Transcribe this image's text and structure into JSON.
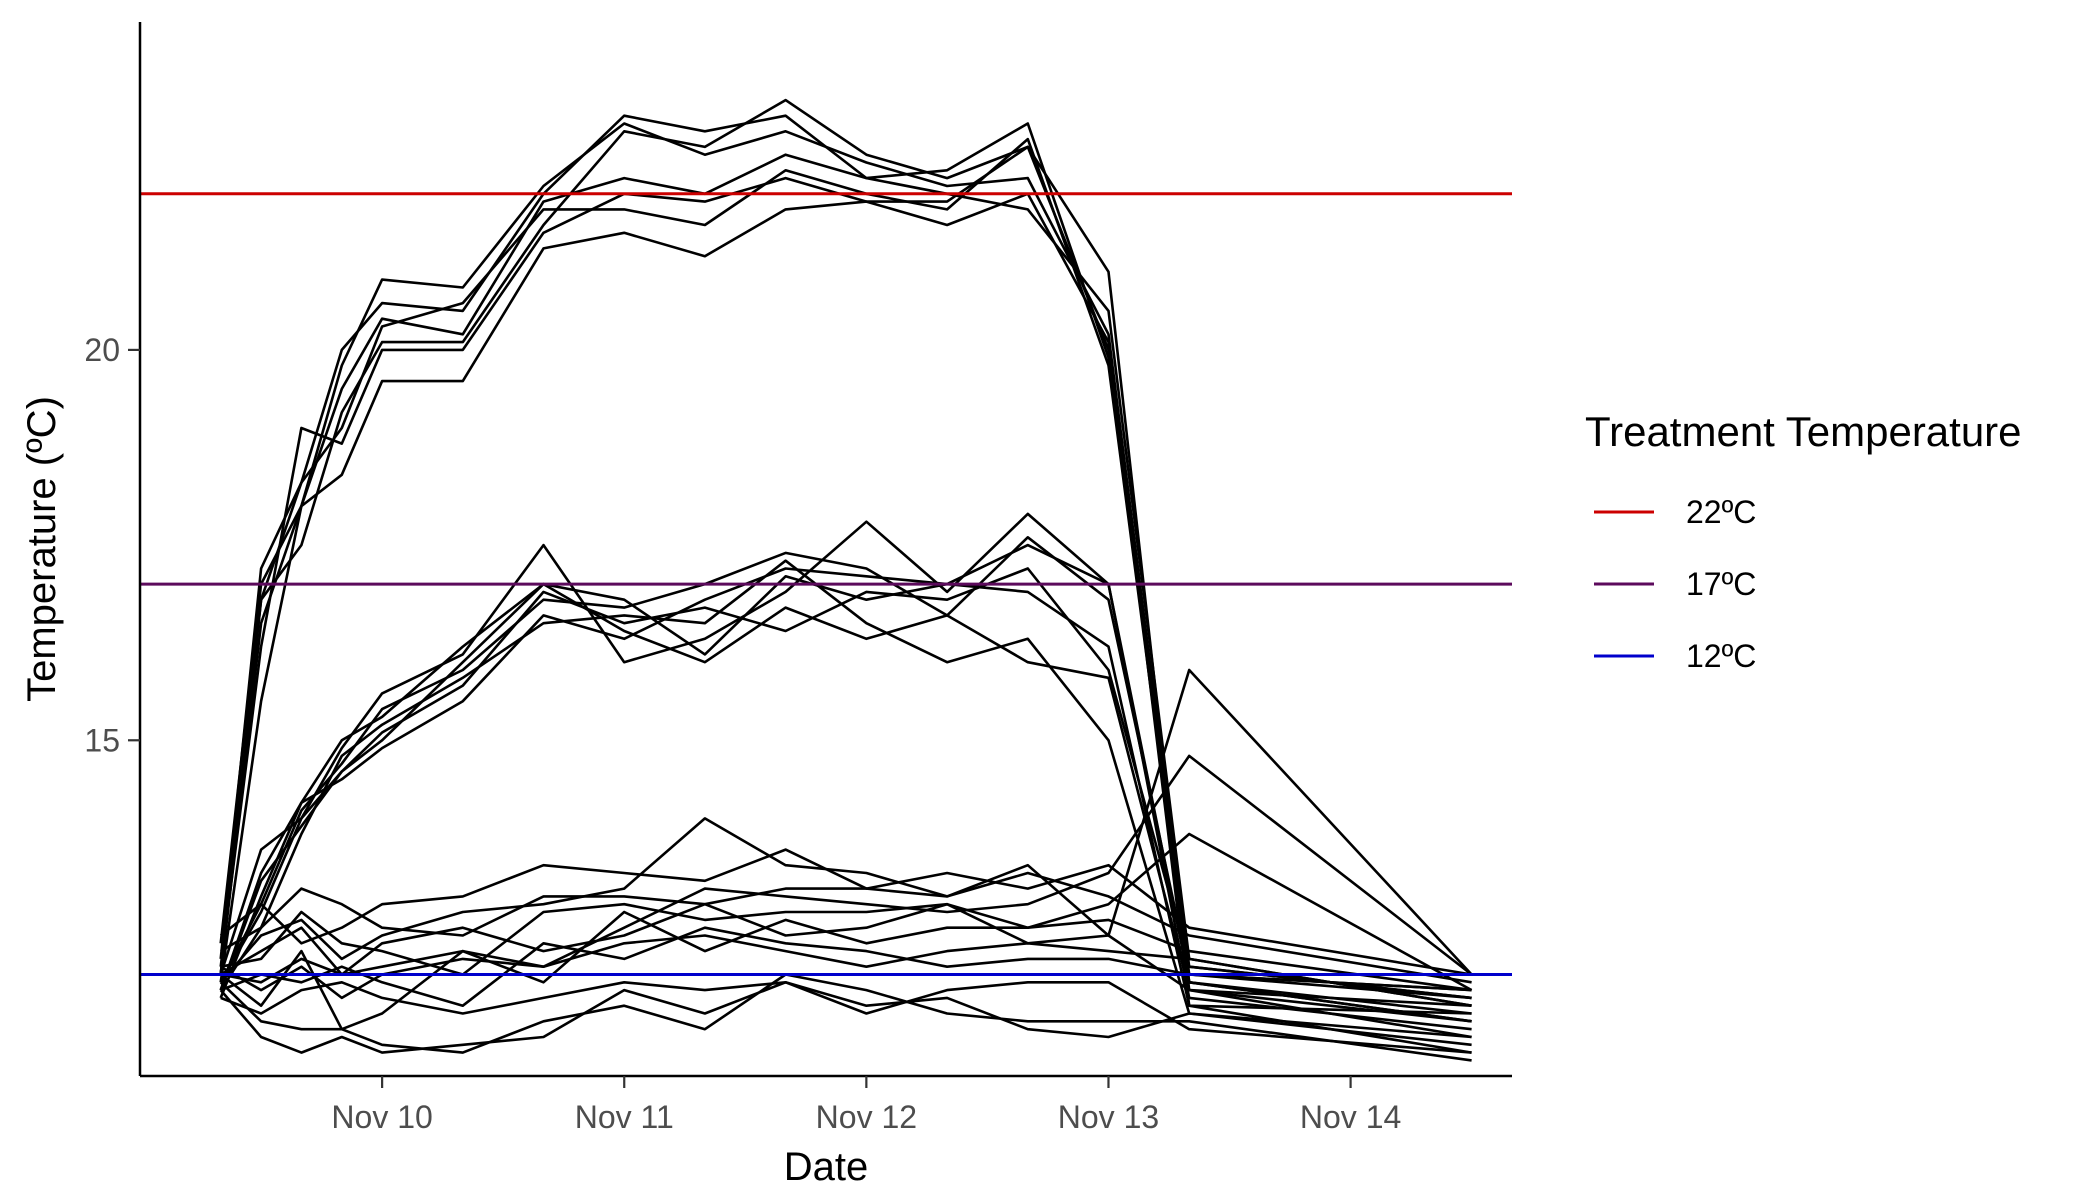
{
  "chart_data": {
    "type": "line",
    "title": "",
    "xlabel": "Date",
    "ylabel": "Temperature (ºC)",
    "x_axis": {
      "type": "date",
      "range": [
        "2023-11-09 00:00",
        "2023-11-14 16:00"
      ],
      "ticks": [
        {
          "value": "2023-11-10 00:00",
          "label": "Nov 10"
        },
        {
          "value": "2023-11-11 00:00",
          "label": "Nov 11"
        },
        {
          "value": "2023-11-12 00:00",
          "label": "Nov 12"
        },
        {
          "value": "2023-11-13 00:00",
          "label": "Nov 13"
        },
        {
          "value": "2023-11-14 00:00",
          "label": "Nov 14"
        }
      ]
    },
    "y_axis": {
      "range": [
        10.7,
        24.2
      ],
      "ticks": [
        {
          "value": 15,
          "label": "15"
        },
        {
          "value": 20,
          "label": "20"
        }
      ]
    },
    "grid": false,
    "legend": {
      "title": "Treatment Temperature",
      "placement": "right",
      "entries": [
        {
          "label": "22ºC",
          "color": "#cc0000",
          "value": 22
        },
        {
          "label": "17ºC",
          "color": "#5c0a5c",
          "value": 17
        },
        {
          "label": "12ºC",
          "color": "#0000cc",
          "value": 12
        }
      ]
    },
    "x": [
      "2023-11-09 08:00",
      "2023-11-09 12:00",
      "2023-11-09 16:00",
      "2023-11-09 20:00",
      "2023-11-10 00:00",
      "2023-11-10 08:00",
      "2023-11-10 16:00",
      "2023-11-11 00:00",
      "2023-11-11 08:00",
      "2023-11-11 16:00",
      "2023-11-12 00:00",
      "2023-11-12 08:00",
      "2023-11-12 16:00",
      "2023-11-13 00:00",
      "2023-11-13 08:00",
      "2023-11-14 12:00"
    ],
    "series": [
      {
        "values": [
          12.2,
          17.2,
          18.3,
          20.0,
          20.6,
          20.5,
          22.0,
          23.0,
          22.8,
          23.0,
          22.2,
          22.0,
          21.8,
          20.5,
          12.2,
          11.6
        ]
      },
      {
        "values": [
          12.0,
          16.5,
          18.0,
          19.8,
          20.9,
          20.8,
          22.1,
          22.9,
          22.5,
          22.8,
          22.4,
          22.1,
          22.2,
          20.2,
          12.0,
          11.8
        ]
      },
      {
        "values": [
          12.4,
          17.0,
          18.0,
          19.5,
          20.4,
          20.2,
          21.9,
          22.2,
          22.0,
          22.5,
          22.2,
          22.3,
          22.9,
          19.9,
          12.1,
          11.7
        ]
      },
      {
        "values": [
          12.0,
          16.8,
          17.5,
          19.2,
          20.1,
          20.1,
          21.6,
          22.8,
          22.6,
          23.2,
          22.5,
          22.2,
          22.6,
          20.0,
          11.9,
          11.5
        ]
      },
      {
        "values": [
          12.1,
          16.2,
          19.0,
          18.8,
          20.0,
          20.0,
          21.5,
          22.0,
          21.9,
          22.2,
          21.9,
          21.9,
          22.6,
          21.0,
          11.8,
          11.2
        ]
      },
      {
        "values": [
          11.9,
          15.5,
          18.0,
          18.4,
          19.6,
          19.6,
          21.3,
          21.5,
          21.2,
          21.8,
          21.9,
          21.6,
          22.0,
          20.1,
          11.6,
          11.0
        ]
      },
      {
        "values": [
          12.0,
          16.8,
          18.3,
          19.0,
          20.3,
          20.6,
          21.8,
          21.8,
          21.6,
          22.3,
          22.0,
          21.8,
          22.7,
          19.8,
          11.9,
          11.4
        ]
      },
      {
        "values": [
          11.8,
          12.6,
          13.8,
          14.8,
          15.2,
          15.8,
          16.5,
          16.6,
          16.5,
          17.3,
          16.5,
          16.0,
          16.3,
          15.0,
          11.5,
          11.2
        ]
      },
      {
        "values": [
          11.9,
          12.8,
          14.0,
          14.6,
          15.0,
          16.0,
          17.0,
          16.8,
          16.1,
          17.1,
          16.8,
          17.0,
          17.5,
          17.0,
          11.7,
          11.3
        ]
      },
      {
        "values": [
          11.7,
          13.0,
          14.2,
          14.5,
          14.9,
          15.5,
          16.6,
          16.3,
          16.8,
          17.2,
          17.1,
          17.0,
          16.9,
          16.2,
          11.6,
          11.5
        ]
      },
      {
        "values": [
          11.8,
          13.3,
          14.2,
          15.0,
          15.3,
          16.2,
          17.0,
          16.4,
          16.0,
          16.7,
          16.3,
          16.6,
          16.0,
          15.8,
          11.8,
          11.6
        ]
      },
      {
        "values": [
          12.0,
          13.6,
          14.0,
          14.9,
          15.6,
          16.1,
          17.5,
          16.0,
          16.3,
          16.9,
          17.8,
          16.9,
          17.9,
          17.0,
          11.9,
          11.4
        ]
      },
      {
        "values": [
          11.9,
          12.9,
          14.1,
          14.7,
          15.4,
          15.9,
          16.8,
          16.7,
          17.0,
          17.4,
          17.2,
          16.6,
          17.6,
          16.8,
          12.0,
          11.8
        ]
      },
      {
        "values": [
          11.8,
          13.2,
          13.9,
          14.6,
          15.1,
          15.7,
          16.9,
          16.5,
          16.7,
          16.4,
          16.9,
          16.8,
          17.2,
          15.9,
          12.1,
          11.7
        ]
      },
      {
        "values": [
          11.8,
          11.2,
          11.0,
          11.2,
          11.0,
          11.1,
          11.2,
          11.8,
          11.5,
          11.9,
          11.6,
          11.7,
          11.3,
          11.2,
          11.5,
          11.1
        ]
      },
      {
        "values": [
          11.9,
          11.4,
          11.3,
          11.3,
          11.1,
          11.0,
          11.4,
          11.6,
          11.3,
          12.0,
          11.8,
          11.5,
          11.4,
          11.4,
          11.4,
          10.9
        ]
      },
      {
        "values": [
          11.7,
          11.5,
          11.8,
          11.9,
          11.7,
          11.5,
          11.7,
          11.9,
          11.8,
          11.9,
          11.5,
          11.8,
          11.9,
          11.9,
          11.3,
          11.0
        ]
      },
      {
        "values": [
          12.0,
          11.9,
          12.2,
          12.0,
          12.1,
          12.3,
          12.1,
          12.4,
          12.5,
          12.3,
          12.1,
          12.3,
          12.4,
          12.3,
          12.2,
          11.6
        ]
      },
      {
        "values": [
          12.1,
          12.2,
          12.8,
          12.4,
          12.3,
          12.0,
          12.8,
          12.9,
          12.7,
          12.8,
          12.8,
          12.9,
          12.6,
          12.7,
          12.3,
          11.8
        ]
      },
      {
        "values": [
          12.3,
          12.6,
          13.1,
          12.9,
          12.6,
          12.5,
          13.0,
          13.0,
          12.9,
          13.1,
          13.1,
          13.0,
          13.3,
          13.0,
          12.5,
          11.9
        ]
      },
      {
        "values": [
          12.5,
          12.9,
          12.4,
          12.6,
          12.9,
          13.0,
          13.4,
          13.3,
          13.2,
          13.6,
          13.1,
          13.3,
          13.1,
          13.4,
          12.6,
          12.0
        ]
      },
      {
        "values": [
          11.9,
          12.5,
          12.7,
          12.2,
          12.5,
          12.8,
          12.9,
          13.1,
          14.0,
          13.4,
          13.3,
          13.0,
          13.4,
          12.5,
          11.8,
          11.4
        ]
      },
      {
        "values": [
          11.8,
          12.0,
          11.9,
          12.1,
          11.9,
          11.6,
          12.4,
          12.2,
          12.6,
          12.4,
          12.3,
          12.1,
          12.2,
          12.2,
          12.0,
          11.7
        ]
      },
      {
        "values": [
          12.0,
          11.6,
          12.3,
          11.3,
          11.5,
          12.3,
          11.9,
          12.8,
          12.3,
          12.7,
          12.4,
          12.6,
          12.6,
          12.9,
          13.8,
          11.8
        ]
      },
      {
        "values": [
          12.1,
          11.8,
          12.1,
          11.7,
          12.0,
          12.2,
          12.1,
          12.6,
          13.1,
          13.0,
          12.9,
          12.8,
          12.9,
          13.3,
          14.8,
          12.0
        ]
      },
      {
        "values": [
          12.0,
          12.3,
          12.6,
          12.0,
          12.4,
          12.6,
          12.3,
          12.5,
          12.9,
          12.5,
          12.6,
          12.9,
          12.4,
          12.5,
          15.9,
          12.0
        ]
      }
    ]
  }
}
